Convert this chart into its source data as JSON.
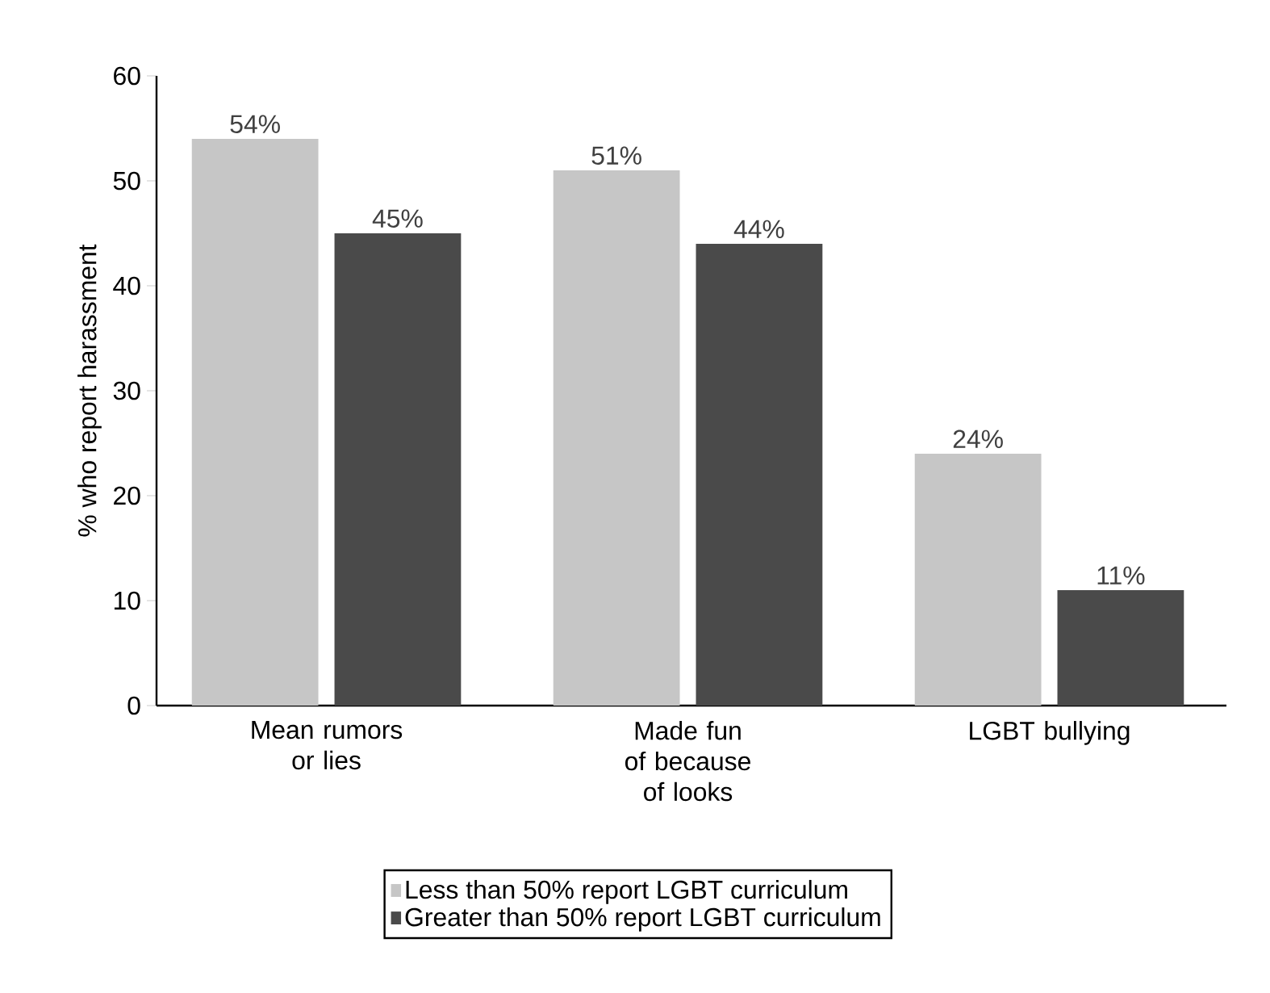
{
  "chart_data": {
    "type": "bar",
    "ylabel": "% who report harassment",
    "categories": [
      "Mean rumors or lies",
      "Made fun of because of looks",
      "LGBT bullying"
    ],
    "series": [
      {
        "name": "Less than 50% report LGBT curriculum",
        "color": "#c6c6c6",
        "values": [
          54,
          51,
          24
        ],
        "value_labels": [
          "54%",
          "51%",
          "24%"
        ]
      },
      {
        "name": "Greater than 50% report LGBT curriculum",
        "color": "#4a4a4a",
        "values": [
          45,
          44,
          11
        ],
        "value_labels": [
          "45%",
          "44%",
          "11%"
        ]
      }
    ],
    "ylim": [
      0,
      60
    ],
    "yticks": [
      0,
      10,
      20,
      30,
      40,
      50,
      60
    ],
    "grid": false,
    "legend": "bottom"
  }
}
